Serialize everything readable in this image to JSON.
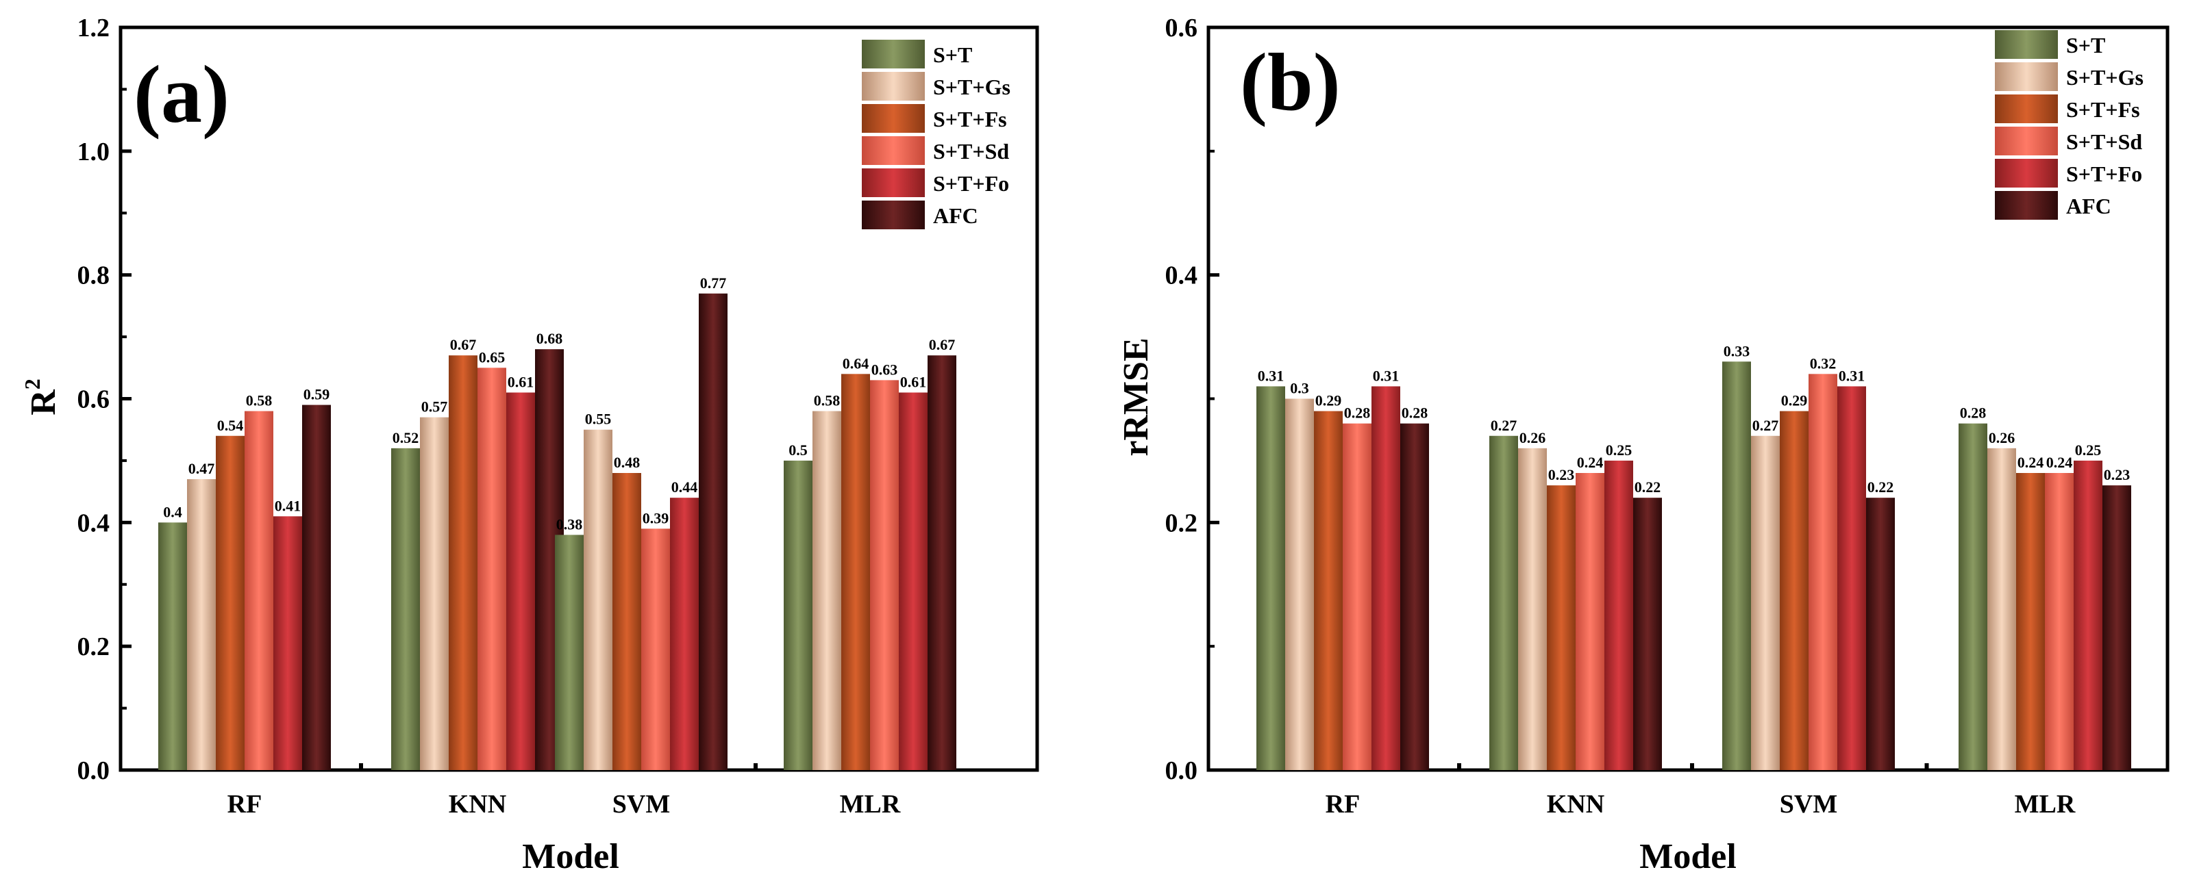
{
  "chart_data": [
    {
      "type": "bar",
      "panel_label": "(a)",
      "categories": [
        "RF",
        "KNN",
        "SVM",
        "MLR"
      ],
      "series": [
        {
          "name": "S+T",
          "values": [
            0.4,
            0.52,
            0.38,
            0.5
          ],
          "labels": [
            "0.4",
            "0.52",
            "0.38",
            "0.5"
          ]
        },
        {
          "name": "S+T+Gs",
          "values": [
            0.47,
            0.57,
            0.55,
            0.58
          ],
          "labels": [
            "0.47",
            "0.57",
            "0.55",
            "0.58"
          ]
        },
        {
          "name": "S+T+Fs",
          "values": [
            0.54,
            0.67,
            0.48,
            0.64
          ],
          "labels": [
            "0.54",
            "0.67",
            "0.48",
            "0.64"
          ]
        },
        {
          "name": "S+T+Sd",
          "values": [
            0.58,
            0.65,
            0.39,
            0.63
          ],
          "labels": [
            "0.58",
            "0.65",
            "0.39",
            "0.63"
          ]
        },
        {
          "name": "S+T+Fo",
          "values": [
            0.41,
            0.61,
            0.44,
            0.61
          ],
          "labels": [
            "0.41",
            "0.61",
            "0.44",
            "0.61"
          ]
        },
        {
          "name": "AFC",
          "values": [
            0.59,
            0.68,
            0.77,
            0.67
          ],
          "labels": [
            "0.59",
            "0.68",
            "0.77",
            "0.67"
          ]
        }
      ],
      "ylim": [
        0,
        1.2
      ],
      "yticks": [
        0.0,
        0.2,
        0.4,
        0.6,
        0.8,
        1.0,
        1.2
      ],
      "ytick_labels": [
        "0.0",
        "0.2",
        "0.4",
        "0.6",
        "0.8",
        "1.0",
        "1.2"
      ],
      "ylabel_main": "R",
      "ylabel_sup": "2",
      "xlabel": "Model",
      "legend_position": "top-right"
    },
    {
      "type": "bar",
      "panel_label": "(b)",
      "categories": [
        "RF",
        "KNN",
        "SVM",
        "MLR"
      ],
      "series": [
        {
          "name": "S+T",
          "values": [
            0.31,
            0.27,
            0.33,
            0.28
          ],
          "labels": [
            "0.31",
            "0.27",
            "0.33",
            "0.28"
          ]
        },
        {
          "name": "S+T+Gs",
          "values": [
            0.3,
            0.26,
            0.27,
            0.26
          ],
          "labels": [
            "0.3",
            "0.26",
            "0.27",
            "0.26"
          ]
        },
        {
          "name": "S+T+Fs",
          "values": [
            0.29,
            0.23,
            0.29,
            0.24
          ],
          "labels": [
            "0.29",
            "0.23",
            "0.29",
            "0.24"
          ]
        },
        {
          "name": "S+T+Sd",
          "values": [
            0.28,
            0.24,
            0.32,
            0.24
          ],
          "labels": [
            "0.28",
            "0.24",
            "0.32",
            "0.24"
          ]
        },
        {
          "name": "S+T+Fo",
          "values": [
            0.31,
            0.25,
            0.31,
            0.25
          ],
          "labels": [
            "0.31",
            "0.25",
            "0.31",
            "0.25"
          ]
        },
        {
          "name": "AFC",
          "values": [
            0.28,
            0.22,
            0.22,
            0.23
          ],
          "labels": [
            "0.28",
            "0.22",
            "0.22",
            "0.23"
          ]
        }
      ],
      "ylim": [
        0,
        0.6
      ],
      "yticks": [
        0.0,
        0.2,
        0.4,
        0.6
      ],
      "ytick_labels": [
        "0.0",
        "0.2",
        "0.4",
        "0.6"
      ],
      "ylabel_main": "rRMSE",
      "ylabel_sup": "",
      "xlabel": "Model",
      "legend_position": "top-right"
    }
  ],
  "colors": {
    "S+T": [
      "#4f5c32",
      "#8a9a62",
      "#4f5c32"
    ],
    "S+T+Gs": [
      "#b88e72",
      "#f7d8c0",
      "#b88e72"
    ],
    "S+T+Fs": [
      "#8c3a14",
      "#d8602c",
      "#8c3a14"
    ],
    "S+T+Sd": [
      "#c74a3a",
      "#ff7a66",
      "#c74a3a"
    ],
    "S+T+Fo": [
      "#8a1e20",
      "#d83a40",
      "#8a1e20"
    ],
    "AFC": [
      "#2c0a0a",
      "#6e2424",
      "#2c0a0a"
    ]
  }
}
